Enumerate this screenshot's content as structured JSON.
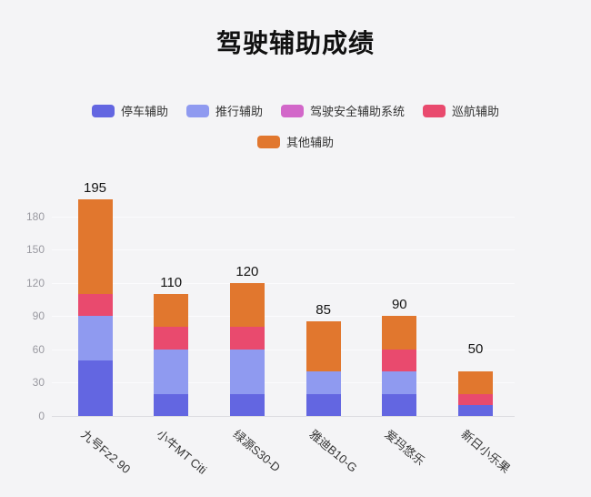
{
  "title": "驾驶辅助成绩",
  "colors": {
    "background": "#f4f4f6",
    "gridline": "#fbfbfd",
    "axis_line": "#dddde1",
    "tick_label": "#9a9aa1",
    "value_label": "#151515",
    "x_label": "#343434",
    "legend_label": "#333333"
  },
  "chart_data": {
    "type": "bar",
    "stacked": true,
    "title": "驾驶辅助成绩",
    "xlabel": "",
    "ylabel": "",
    "grid": true,
    "legend_position": "top",
    "legend_rows": [
      [
        0,
        1,
        2,
        3
      ],
      [
        4
      ]
    ],
    "categories": [
      "九号Fz2 90",
      "小牛MT Citi",
      "绿源S30-D",
      "雅迪B10-G",
      "爱玛悠乐",
      "新日小乐果"
    ],
    "series": [
      {
        "name": "停车辅助",
        "color": "#6366e1",
        "values": [
          50,
          20,
          20,
          20,
          20,
          10
        ]
      },
      {
        "name": "推行辅助",
        "color": "#8f9af0",
        "values": [
          40,
          40,
          40,
          20,
          20,
          0
        ]
      },
      {
        "name": "驾驶安全辅助系统",
        "color": "#d267c9",
        "values": [
          0,
          0,
          0,
          0,
          0,
          0
        ]
      },
      {
        "name": "巡航辅助",
        "color": "#e94a6e",
        "values": [
          20,
          20,
          20,
          0,
          20,
          10
        ]
      },
      {
        "name": "其他辅助",
        "color": "#e1772e",
        "values": [
          85,
          30,
          40,
          45,
          30,
          20
        ]
      }
    ],
    "totals": [
      195,
      110,
      120,
      85,
      90,
      50
    ],
    "yticks": [
      0,
      30,
      60,
      90,
      120,
      150,
      180
    ],
    "ylim": [
      0,
      195
    ]
  }
}
